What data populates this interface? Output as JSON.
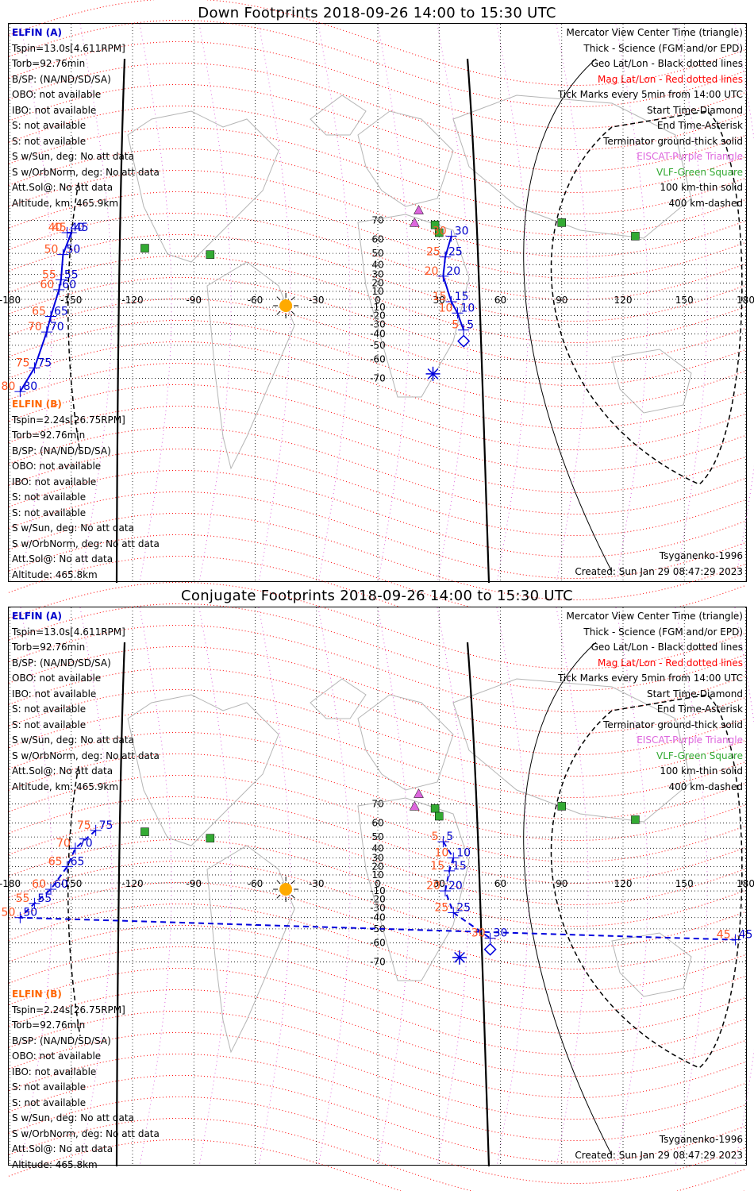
{
  "panels": [
    {
      "title": "Down Footprints 2018-09-26 14:00 to 15:30 UTC",
      "sat_a": {
        "name": "ELFIN (A)",
        "lines": [
          "Tspin=13.0s[4.611RPM]",
          "Torb=92.76min",
          "B/SP: (NA/ND/SD/SA)",
          "OBO: not available",
          "IBO: not available",
          "S: not available",
          "S: not available",
          "S w/Sun, deg: No att data",
          "S w/OrbNorm, deg: No att data",
          "Att.Sol@: No att data",
          "Altitude, km: 465.9km"
        ]
      },
      "sat_b": {
        "name": "ELFIN (B)",
        "lines": [
          "Tspin=2.24s[26.75RPM]",
          "Torb=92.76min",
          "B/SP: (NA/ND/SD/SA)",
          "OBO: not available",
          "IBO: not available",
          "S: not available",
          "S: not available",
          "S w/Sun, deg: No att data",
          "S w/OrbNorm, deg: No att data",
          "Att.Sol@: No att data",
          "Altitude: 465.8km"
        ]
      },
      "track_a_ticks": [
        {
          "label": "40",
          "lon": -152,
          "lat": 64
        },
        {
          "label": "45",
          "lon": -150,
          "lat": 64
        },
        {
          "label": "50",
          "lon": -154,
          "lat": 49
        },
        {
          "label": "55",
          "lon": -155,
          "lat": 24
        },
        {
          "label": "60",
          "lon": -156,
          "lat": 12
        },
        {
          "label": "65",
          "lon": -160,
          "lat": -21
        },
        {
          "label": "70",
          "lon": -162,
          "lat": -38
        },
        {
          "label": "75",
          "lon": -168,
          "lat": -65
        },
        {
          "label": "80",
          "lon": -175,
          "lat": -75
        }
      ],
      "track_b_ticks": [
        {
          "label": "30",
          "lon": 36,
          "lat": 62
        },
        {
          "label": "25",
          "lon": 33,
          "lat": 47
        },
        {
          "label": "20",
          "lon": 32,
          "lat": 28
        },
        {
          "label": "15",
          "lon": 36,
          "lat": -3
        },
        {
          "label": "10",
          "lon": 39,
          "lat": -17
        },
        {
          "label": "5",
          "lon": 42,
          "lat": -36
        }
      ]
    },
    {
      "title": "Conjugate Footprints 2018-09-26 14:00 to 15:30 UTC",
      "sat_a": {
        "name": "ELFIN (A)",
        "lines": [
          "Tspin=13.0s[4.611RPM]",
          "Torb=92.76min",
          "B/SP: (NA/ND/SD/SA)",
          "OBO: not available",
          "IBO: not available",
          "S: not available",
          "S: not available",
          "S w/Sun, deg: No att data",
          "S w/OrbNorm, deg: No att data",
          "Att.Sol@: No att data",
          "Altitude, km: 465.9km"
        ]
      },
      "sat_b": {
        "name": "ELFIN (B)",
        "lines": [
          "Tspin=2.24s[26.75RPM]",
          "Torb=92.76min",
          "B/SP: (NA/ND/SD/SA)",
          "OBO: not available",
          "IBO: not available",
          "S: not available",
          "S: not available",
          "S w/Sun, deg: No att data",
          "S w/OrbNorm, deg: No att data",
          "Att.Sol@: No att data",
          "Altitude: 465.8km"
        ]
      },
      "track_a_ticks": [
        {
          "label": "75",
          "lon": -138,
          "lat": 55
        },
        {
          "label": "70",
          "lon": -148,
          "lat": 40
        },
        {
          "label": "65",
          "lon": -152,
          "lat": 20
        },
        {
          "label": "60",
          "lon": -160,
          "lat": -8
        },
        {
          "label": "55",
          "lon": -168,
          "lat": -25
        },
        {
          "label": "50",
          "lon": -175,
          "lat": -40
        },
        {
          "label": "45",
          "lon": 175,
          "lat": -58
        }
      ],
      "track_b_ticks": [
        {
          "label": "5",
          "lon": 32,
          "lat": 46
        },
        {
          "label": "10",
          "lon": 37,
          "lat": 30
        },
        {
          "label": "15",
          "lon": 35,
          "lat": 15
        },
        {
          "label": "20",
          "lon": 33,
          "lat": -10
        },
        {
          "label": "25",
          "lon": 37,
          "lat": -35
        },
        {
          "label": "30",
          "lon": 55,
          "lat": -57
        }
      ]
    }
  ],
  "legend": {
    "line1": "Mercator View Center Time (triangle)",
    "line2": "Thick - Science (FGM and/or EPD)",
    "line3": "Geo Lat/Lon - Black dotted lines",
    "line4": "Mag Lat/Lon - Red dotted lines",
    "line5": "Tick Marks every 5min from 14:00 UTC",
    "line6": "Start Time-Diamond",
    "line7": "End Time-Asterisk",
    "line8": "Terminator ground-thick solid",
    "line9": "EISCAT-Purple Triangle",
    "line10": "VLF-Green Square",
    "line11": "100 km-thin solid",
    "line12": "400 km-dashed"
  },
  "footer": {
    "model": "Tsyganenko-1996",
    "created": "Created: Sun Jan 29 08:47:29 2023"
  },
  "axis": {
    "lon_ticks": [
      "-180",
      "-150",
      "-120",
      "-90",
      "-60",
      "-30",
      "0",
      "30",
      "60",
      "90",
      "120",
      "150",
      "180"
    ],
    "lat_ticks": [
      "70",
      "60",
      "50",
      "40",
      "30",
      "20",
      "10",
      "0",
      "-10",
      "-20",
      "-30",
      "-40",
      "-50",
      "-60",
      "-70"
    ]
  },
  "colors": {
    "track": "#0000dd",
    "tick_label_red": "#ff5522",
    "mag_grid": "#ff0000",
    "geo_grid": "#000000",
    "eiscat": "#dd66dd",
    "vlf": "#33aa33",
    "sun": "#ffaa00"
  }
}
